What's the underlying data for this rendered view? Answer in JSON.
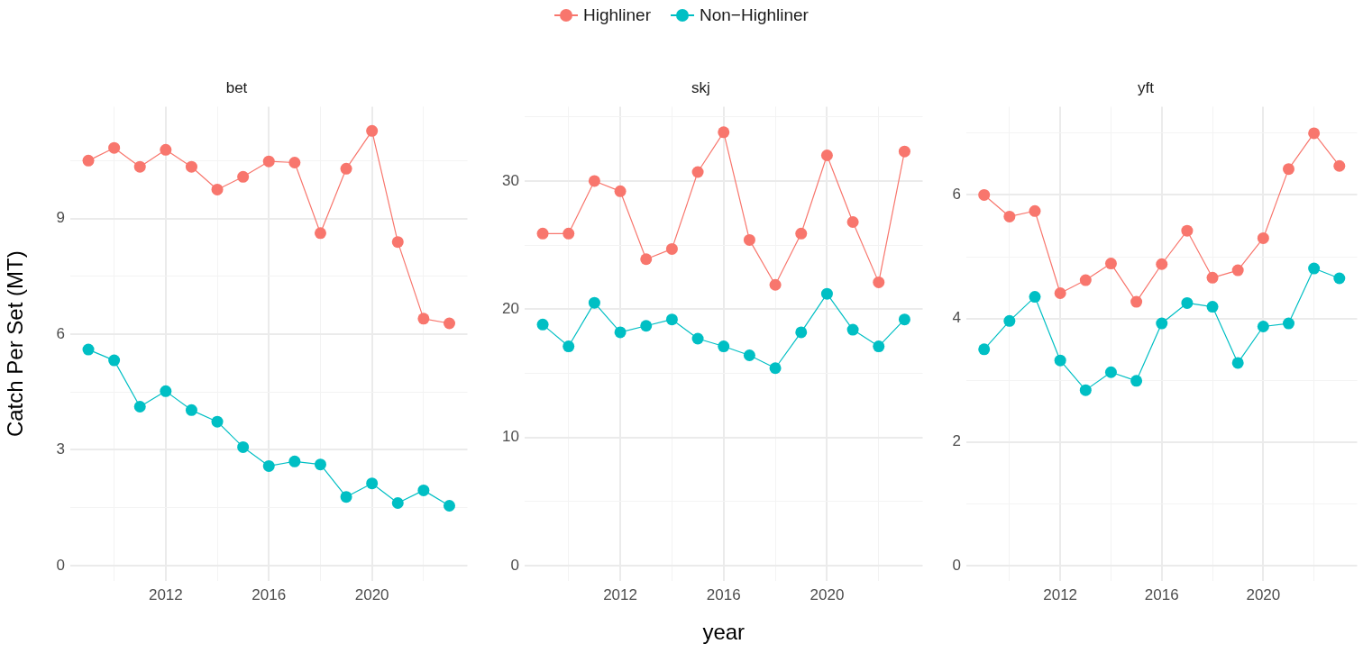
{
  "chart_data": [
    {
      "type": "line",
      "title": "bet",
      "ylabel": "Catch Per Set (MT)",
      "legend": "top",
      "marker": "circle",
      "grid": true,
      "x": [
        2009,
        2010,
        2011,
        2012,
        2013,
        2014,
        2015,
        2016,
        2017,
        2018,
        2019,
        2020,
        2021,
        2022,
        2023
      ],
      "xlim": [
        2008.3,
        2023.7
      ],
      "xticks": [
        {
          "value": 2010,
          "label": null
        },
        2012,
        {
          "value": 2014,
          "label": null
        },
        2016,
        {
          "value": 2018,
          "label": null
        },
        2020,
        {
          "value": 2022,
          "label": null
        }
      ],
      "ylim": [
        -0.4,
        11.9
      ],
      "yticks": [
        0,
        {
          "value": 1.5,
          "label": null
        },
        3,
        {
          "value": 4.5,
          "label": null
        },
        6,
        {
          "value": 7.5,
          "label": null
        },
        9,
        {
          "value": 10.5,
          "label": null
        }
      ],
      "series": [
        {
          "name": "Highliner",
          "color": "#f8766d",
          "values": [
            10.5,
            10.83,
            10.34,
            10.78,
            10.34,
            9.75,
            10.08,
            10.48,
            10.45,
            8.62,
            10.29,
            11.27,
            8.39,
            6.4,
            6.28
          ]
        },
        {
          "name": "Non−Highliner",
          "color": "#00bfc4",
          "values": [
            5.6,
            5.32,
            4.12,
            4.52,
            4.03,
            3.73,
            3.07,
            2.58,
            2.7,
            2.62,
            1.78,
            2.13,
            1.62,
            1.95,
            1.55
          ]
        }
      ]
    },
    {
      "type": "line",
      "title": "skj",
      "xlabel": "year",
      "marker": "circle",
      "grid": true,
      "x": [
        2009,
        2010,
        2011,
        2012,
        2013,
        2014,
        2015,
        2016,
        2017,
        2018,
        2019,
        2020,
        2021,
        2022,
        2023
      ],
      "xlim": [
        2008.3,
        2023.7
      ],
      "xticks": [
        {
          "value": 2010,
          "label": null
        },
        2012,
        {
          "value": 2014,
          "label": null
        },
        2016,
        {
          "value": 2018,
          "label": null
        },
        2020,
        {
          "value": 2022,
          "label": null
        }
      ],
      "ylim": [
        -1.2,
        35.8
      ],
      "yticks": [
        0,
        {
          "value": 5,
          "label": null
        },
        10,
        {
          "value": 15,
          "label": null
        },
        20,
        {
          "value": 25,
          "label": null
        },
        30,
        {
          "value": 35,
          "label": null
        }
      ],
      "series": [
        {
          "color": "#f8766d",
          "values": [
            25.9,
            25.9,
            30.0,
            29.2,
            23.9,
            24.7,
            30.7,
            33.8,
            25.4,
            21.9,
            25.9,
            32.0,
            26.8,
            22.1,
            32.3
          ]
        },
        {
          "color": "#00bfc4",
          "values": [
            18.8,
            17.1,
            20.5,
            18.2,
            18.7,
            19.2,
            17.7,
            17.1,
            16.4,
            15.4,
            18.2,
            21.2,
            18.4,
            17.1,
            19.2
          ]
        }
      ]
    },
    {
      "type": "line",
      "title": "yft",
      "marker": "circle",
      "grid": true,
      "x": [
        2009,
        2010,
        2011,
        2012,
        2013,
        2014,
        2015,
        2016,
        2017,
        2018,
        2019,
        2020,
        2021,
        2022,
        2023
      ],
      "xlim": [
        2008.3,
        2023.7
      ],
      "xticks": [
        {
          "value": 2010,
          "label": null
        },
        2012,
        {
          "value": 2014,
          "label": null
        },
        2016,
        {
          "value": 2018,
          "label": null
        },
        2020,
        {
          "value": 2022,
          "label": null
        }
      ],
      "ylim": [
        -0.25,
        7.43
      ],
      "yticks": [
        0,
        {
          "value": 1,
          "label": null
        },
        2,
        {
          "value": 3,
          "label": null
        },
        4,
        {
          "value": 5,
          "label": null
        },
        6,
        {
          "value": 7,
          "label": null
        }
      ],
      "series": [
        {
          "color": "#f8766d",
          "values": [
            6.0,
            5.65,
            5.74,
            4.41,
            4.62,
            4.89,
            4.27,
            4.88,
            5.42,
            4.66,
            4.78,
            5.3,
            6.42,
            7.0,
            6.47
          ]
        },
        {
          "color": "#00bfc4",
          "values": [
            3.5,
            3.96,
            4.35,
            3.32,
            2.84,
            3.13,
            2.99,
            3.92,
            4.25,
            4.19,
            3.28,
            3.87,
            3.92,
            4.81,
            4.65
          ]
        }
      ]
    }
  ]
}
